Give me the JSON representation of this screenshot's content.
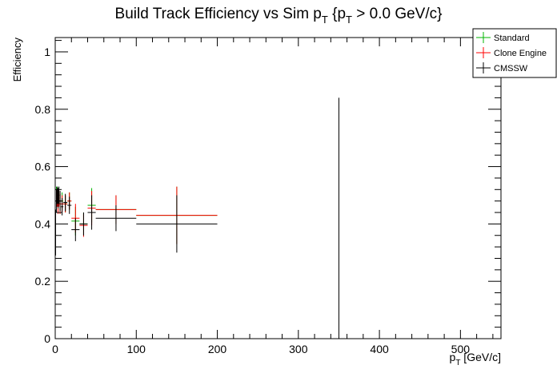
{
  "chart_data": {
    "type": "scatter",
    "title": {
      "main": "Build Track Efficiency vs Sim p",
      "sub1": "T",
      "mid": " {p",
      "sub2": "T",
      "tail": " > 0.0 GeV/c}"
    },
    "ylabel": "Efficiency",
    "xlabel": {
      "p": "p",
      "sub": "T",
      "unit": " [GeV/c]"
    },
    "xlim": [
      0,
      550
    ],
    "ylim": [
      0,
      1.05
    ],
    "x_ticks": [
      0,
      100,
      200,
      300,
      400,
      500
    ],
    "y_ticks": [
      0,
      0.2,
      0.4,
      0.6,
      0.8,
      1
    ],
    "x_tick_labels": [
      "0",
      "100",
      "200",
      "300",
      "400",
      "500"
    ],
    "y_tick_labels": [
      "0",
      "0.2",
      "0.4",
      "0.6",
      "0.8",
      "1"
    ],
    "grid": false,
    "legend_position": "top-right",
    "series": [
      {
        "name": "Standard",
        "color": "#00b400",
        "points": [
          {
            "x": 1.5,
            "xerr": 0.5,
            "y": 0.49,
            "yerr": 0.04
          },
          {
            "x": 2.5,
            "xerr": 0.5,
            "y": 0.5,
            "yerr": 0.03
          },
          {
            "x": 3.5,
            "xerr": 0.5,
            "y": 0.48,
            "yerr": 0.035
          },
          {
            "x": 4.5,
            "xerr": 0.5,
            "y": 0.5,
            "yerr": 0.03
          },
          {
            "x": 6.0,
            "xerr": 1.0,
            "y": 0.47,
            "yerr": 0.035
          },
          {
            "x": 8.5,
            "xerr": 1.5,
            "y": 0.48,
            "yerr": 0.03
          },
          {
            "x": 12.5,
            "xerr": 2.5,
            "y": 0.47,
            "yerr": 0.03
          },
          {
            "x": 17.5,
            "xerr": 2.5,
            "y": 0.48,
            "yerr": 0.03
          },
          {
            "x": 25.0,
            "xerr": 5.0,
            "y": 0.41,
            "yerr": 0.05
          },
          {
            "x": 35.0,
            "xerr": 5.0,
            "y": 0.4,
            "yerr": 0.04
          },
          {
            "x": 45.0,
            "xerr": 5.0,
            "y": 0.465,
            "yerr": 0.06
          },
          {
            "x": 75.0,
            "xerr": 25.0,
            "y": 0.45,
            "yerr": 0.05
          },
          {
            "x": 150.0,
            "xerr": 50.0,
            "y": 0.43,
            "yerr": 0.1
          }
        ]
      },
      {
        "name": "Clone Engine",
        "color": "#ff0000",
        "points": [
          {
            "x": 1.5,
            "xerr": 0.5,
            "y": 0.48,
            "yerr": 0.04
          },
          {
            "x": 2.5,
            "xerr": 0.5,
            "y": 0.49,
            "yerr": 0.03
          },
          {
            "x": 3.5,
            "xerr": 0.5,
            "y": 0.47,
            "yerr": 0.035
          },
          {
            "x": 4.5,
            "xerr": 0.5,
            "y": 0.49,
            "yerr": 0.03
          },
          {
            "x": 6.0,
            "xerr": 1.0,
            "y": 0.47,
            "yerr": 0.035
          },
          {
            "x": 8.5,
            "xerr": 1.5,
            "y": 0.47,
            "yerr": 0.03
          },
          {
            "x": 12.5,
            "xerr": 2.5,
            "y": 0.47,
            "yerr": 0.03
          },
          {
            "x": 17.5,
            "xerr": 2.5,
            "y": 0.48,
            "yerr": 0.03
          },
          {
            "x": 25.0,
            "xerr": 5.0,
            "y": 0.42,
            "yerr": 0.05
          },
          {
            "x": 35.0,
            "xerr": 5.0,
            "y": 0.395,
            "yerr": 0.04
          },
          {
            "x": 45.0,
            "xerr": 5.0,
            "y": 0.455,
            "yerr": 0.06
          },
          {
            "x": 75.0,
            "xerr": 25.0,
            "y": 0.45,
            "yerr": 0.05
          },
          {
            "x": 150.0,
            "xerr": 50.0,
            "y": 0.43,
            "yerr": 0.1
          }
        ]
      },
      {
        "name": "CMSSW",
        "color": "#000000",
        "points": [
          {
            "x": 0.5,
            "xerr": 0.5,
            "y": 0.37,
            "yerr": 0.08
          },
          {
            "x": 1.5,
            "xerr": 0.5,
            "y": 0.48,
            "yerr": 0.04
          },
          {
            "x": 2.5,
            "xerr": 0.5,
            "y": 0.5,
            "yerr": 0.03
          },
          {
            "x": 3.5,
            "xerr": 0.5,
            "y": 0.49,
            "yerr": 0.035
          },
          {
            "x": 4.5,
            "xerr": 0.5,
            "y": 0.5,
            "yerr": 0.03
          },
          {
            "x": 6.0,
            "xerr": 1.0,
            "y": 0.48,
            "yerr": 0.035
          },
          {
            "x": 8.5,
            "xerr": 1.5,
            "y": 0.46,
            "yerr": 0.03
          },
          {
            "x": 12.5,
            "xerr": 2.5,
            "y": 0.475,
            "yerr": 0.03
          },
          {
            "x": 17.5,
            "xerr": 2.5,
            "y": 0.465,
            "yerr": 0.03
          },
          {
            "x": 25.0,
            "xerr": 5.0,
            "y": 0.38,
            "yerr": 0.04
          },
          {
            "x": 35.0,
            "xerr": 5.0,
            "y": 0.4,
            "yerr": 0.04
          },
          {
            "x": 45.0,
            "xerr": 5.0,
            "y": 0.44,
            "yerr": 0.06
          },
          {
            "x": 75.0,
            "xerr": 25.0,
            "y": 0.42,
            "yerr": 0.045
          },
          {
            "x": 150.0,
            "xerr": 50.0,
            "y": 0.4,
            "yerr": 0.1
          },
          {
            "x": 350.0,
            "xerr": 0.0,
            "y": 0.42,
            "yerr": 0.42
          }
        ]
      }
    ]
  }
}
